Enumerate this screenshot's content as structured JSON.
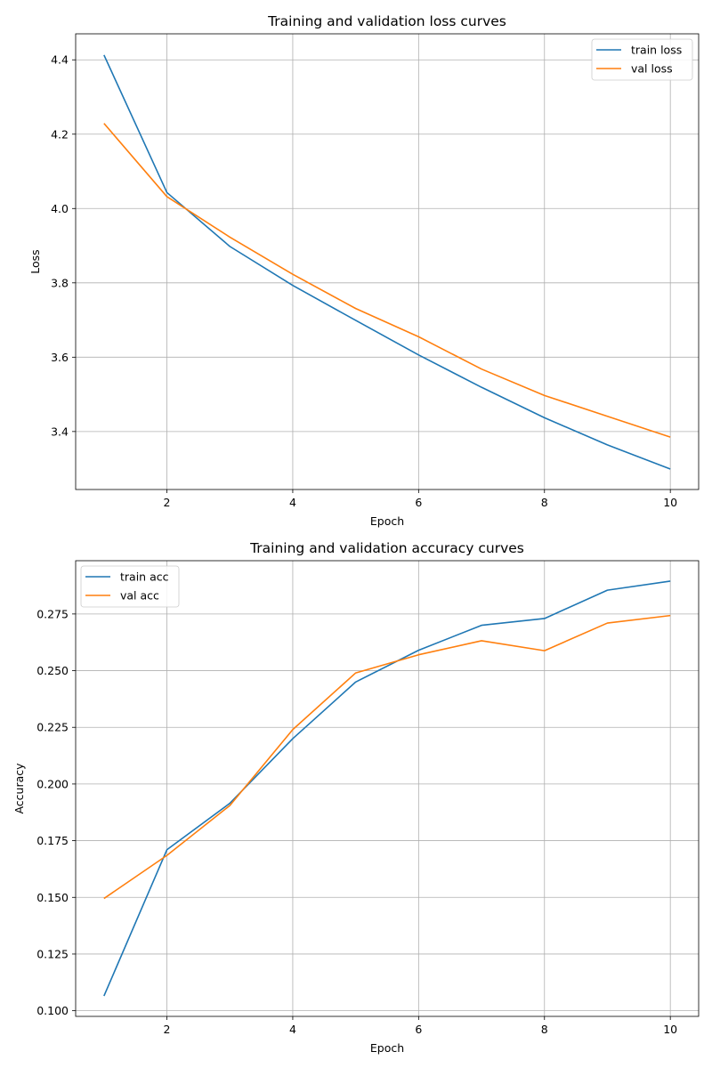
{
  "chart_data": [
    {
      "type": "line",
      "title": "Training and validation loss curves",
      "xlabel": "Epoch",
      "ylabel": "Loss",
      "xlim": [
        0.55,
        10.45
      ],
      "ylim": [
        3.244,
        4.47
      ],
      "xticks": [
        2,
        4,
        6,
        8,
        10
      ],
      "xtick_labels": [
        "2",
        "4",
        "6",
        "8",
        "10"
      ],
      "yticks": [
        3.4,
        3.6,
        3.8,
        4.0,
        4.2,
        4.4
      ],
      "ytick_labels": [
        "3.4",
        "3.6",
        "3.8",
        "4.0",
        "4.2",
        "4.4"
      ],
      "grid": true,
      "legend_position": "upper right",
      "x": [
        1,
        2,
        3,
        4,
        5,
        6,
        7,
        8,
        9,
        10
      ],
      "series": [
        {
          "name": "train loss",
          "color": "#1f77b4",
          "values": [
            4.413,
            4.043,
            3.898,
            3.793,
            3.699,
            3.606,
            3.519,
            3.437,
            3.364,
            3.299
          ]
        },
        {
          "name": "val loss",
          "color": "#ff7f0e",
          "values": [
            4.229,
            4.032,
            3.923,
            3.823,
            3.731,
            3.655,
            3.568,
            3.497,
            3.441,
            3.385
          ]
        }
      ]
    },
    {
      "type": "line",
      "title": "Training and validation accuracy curves",
      "xlabel": "Epoch",
      "ylabel": "Accuracy",
      "xlim": [
        0.55,
        10.45
      ],
      "ylim": [
        0.0975,
        0.2985
      ],
      "xticks": [
        2,
        4,
        6,
        8,
        10
      ],
      "xtick_labels": [
        "2",
        "4",
        "6",
        "8",
        "10"
      ],
      "yticks": [
        0.1,
        0.125,
        0.15,
        0.175,
        0.2,
        0.225,
        0.25,
        0.275
      ],
      "ytick_labels": [
        "0.100",
        "0.125",
        "0.150",
        "0.175",
        "0.200",
        "0.225",
        "0.250",
        "0.275"
      ],
      "grid": true,
      "legend_position": "upper left",
      "x": [
        1,
        2,
        3,
        4,
        5,
        6,
        7,
        8,
        9,
        10
      ],
      "series": [
        {
          "name": "train acc",
          "color": "#1f77b4",
          "values": [
            0.1065,
            0.171,
            0.1915,
            0.22,
            0.245,
            0.259,
            0.27,
            0.273,
            0.2855,
            0.2895
          ]
        },
        {
          "name": "val acc",
          "color": "#ff7f0e",
          "values": [
            0.1495,
            0.1685,
            0.1905,
            0.224,
            0.249,
            0.257,
            0.2632,
            0.2588,
            0.271,
            0.2743
          ]
        }
      ]
    }
  ]
}
